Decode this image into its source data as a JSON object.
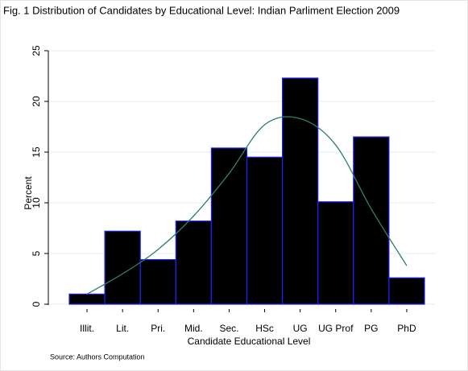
{
  "chart_data": {
    "type": "bar",
    "title": "Fig. 1 Distribution of Candidates by Educational Level: Indian Parliment Election 2009",
    "x_label": "Candidate Educational Level",
    "y_label": "Percent",
    "source": "Source: Authors Computation",
    "categories": [
      "Illit.",
      "Lit.",
      "Pri.",
      "Mid.",
      "Sec.",
      "HSc",
      "UG",
      "UG Prof",
      "PG",
      "PhD"
    ],
    "values": [
      1.0,
      7.2,
      4.4,
      8.2,
      15.4,
      14.5,
      22.3,
      10.1,
      16.5,
      2.6
    ],
    "color": "#000000",
    "edge_color": "#2020ff",
    "curve": {
      "color": "#2e7d6e",
      "values": [
        1.0,
        3.0,
        5.4,
        8.7,
        12.9,
        17.7,
        18.3,
        15.7,
        9.4,
        3.8
      ]
    },
    "ylim": [
      0,
      25
    ],
    "yticks": [
      0,
      5,
      10,
      15,
      20,
      25
    ],
    "grid": true
  }
}
